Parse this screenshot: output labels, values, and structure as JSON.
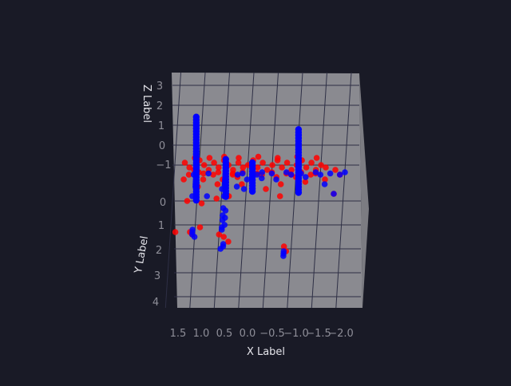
{
  "colors": {
    "background": "#191a26",
    "pane": "#8a8a90",
    "grid": "#2e2f45",
    "tick_text": "#8e8e98",
    "label_text": "#e4e4ea"
  },
  "chart_data": {
    "type": "scatter",
    "title": "",
    "projection": "3d",
    "view": "top-down",
    "xlabel": "X Label",
    "ylabel": "Y Label",
    "zlabel": "Z Label",
    "xlim": [
      1.7,
      -2.3
    ],
    "ylim": [
      -0.7,
      4.2
    ],
    "x_ticks": [
      "1.5",
      "1.0",
      "0.5",
      "0.0",
      "−0.5",
      "−1.0",
      "−1.5",
      "−2.0"
    ],
    "y_ticks": [
      "0",
      "1",
      "2",
      "3",
      "4"
    ],
    "z_ticks": [
      "3",
      "2",
      "1",
      "0",
      "−1"
    ],
    "grid": true,
    "legend": "none",
    "series": [
      {
        "color": "#ff0000",
        "points": [
          [
            1.3,
            -0.4
          ],
          [
            1.2,
            -0.2
          ],
          [
            1.0,
            -0.5
          ],
          [
            0.9,
            -0.3
          ],
          [
            0.8,
            -0.1
          ],
          [
            0.7,
            -0.4
          ],
          [
            0.6,
            -0.2
          ],
          [
            0.5,
            -0.5
          ],
          [
            0.4,
            -0.3
          ],
          [
            0.3,
            -0.1
          ],
          [
            0.2,
            -0.4
          ],
          [
            0.1,
            -0.2
          ],
          [
            0.0,
            -0.3
          ],
          [
            -0.1,
            -0.5
          ],
          [
            -0.2,
            -0.2
          ],
          [
            -0.3,
            -0.4
          ],
          [
            -0.4,
            -0.1
          ],
          [
            -0.5,
            -0.3
          ],
          [
            -0.6,
            -0.5
          ],
          [
            -0.7,
            -0.2
          ],
          [
            -0.8,
            -0.4
          ],
          [
            -0.9,
            -0.1
          ],
          [
            -1.0,
            -0.3
          ],
          [
            -1.1,
            -0.5
          ],
          [
            -1.2,
            -0.2
          ],
          [
            -1.3,
            -0.4
          ],
          [
            -1.4,
            -0.1
          ],
          [
            -1.5,
            -0.3
          ],
          [
            -1.6,
            -0.2
          ],
          [
            -1.8,
            -0.1
          ],
          [
            1.1,
            -0.1
          ],
          [
            1.0,
            0.0
          ],
          [
            0.9,
            0.05
          ],
          [
            0.6,
            0.0
          ],
          [
            0.3,
            0.05
          ],
          [
            0.1,
            0.0
          ],
          [
            -0.2,
            0.05
          ],
          [
            -0.5,
            0.0
          ],
          [
            -0.8,
            0.05
          ],
          [
            -1.1,
            0.0
          ],
          [
            -1.4,
            0.05
          ],
          [
            1.2,
            0.1
          ],
          [
            0.7,
            0.1
          ],
          [
            0.3,
            0.1
          ],
          [
            -0.3,
            0.1
          ],
          [
            -0.9,
            0.1
          ],
          [
            -1.3,
            0.1
          ],
          [
            -1.9,
            0.1
          ],
          [
            1.3,
            0.3
          ],
          [
            0.9,
            0.3
          ],
          [
            0.5,
            0.3
          ],
          [
            0.2,
            0.2
          ],
          [
            -0.1,
            0.3
          ],
          [
            -0.6,
            0.2
          ],
          [
            -1.0,
            0.2
          ],
          [
            -1.6,
            0.3
          ],
          [
            1.0,
            0.6
          ],
          [
            0.6,
            0.5
          ],
          [
            0.1,
            0.5
          ],
          [
            -0.4,
            0.7
          ],
          [
            -0.7,
            0.5
          ],
          [
            -1.2,
            0.4
          ],
          [
            -1.8,
            0.9
          ],
          [
            1.2,
            1.2
          ],
          [
            0.9,
            1.3
          ],
          [
            0.6,
            1.1
          ],
          [
            0.35,
            1.0
          ],
          [
            -0.7,
            1.0
          ],
          [
            0.9,
            2.3
          ],
          [
            0.5,
            2.6
          ],
          [
            0.4,
            2.7
          ],
          [
            0.3,
            2.9
          ],
          [
            1.4,
            2.5
          ],
          [
            1.1,
            2.5
          ],
          [
            1.05,
            2.6
          ],
          [
            -0.9,
            3.3
          ],
          [
            -0.85,
            3.1
          ],
          [
            1.1,
            -0.6
          ],
          [
            0.8,
            -0.6
          ],
          [
            0.5,
            -0.65
          ],
          [
            0.2,
            -0.6
          ],
          [
            -0.2,
            -0.65
          ],
          [
            -0.6,
            -0.6
          ],
          [
            -1.0,
            -0.65
          ],
          [
            -1.4,
            -0.6
          ]
        ]
      },
      {
        "color": "#0000ff",
        "points": [
          [
            1.05,
            -0.2
          ],
          [
            1.05,
            -0.1
          ],
          [
            1.05,
            0.0
          ],
          [
            1.05,
            0.1
          ],
          [
            1.05,
            0.2
          ],
          [
            1.05,
            0.3
          ],
          [
            1.05,
            0.4
          ],
          [
            1.05,
            0.5
          ],
          [
            1.05,
            0.6
          ],
          [
            0.45,
            -0.3
          ],
          [
            0.45,
            -0.2
          ],
          [
            0.45,
            -0.1
          ],
          [
            0.45,
            0.0
          ],
          [
            0.45,
            0.1
          ],
          [
            0.45,
            0.2
          ],
          [
            0.45,
            0.3
          ],
          [
            0.45,
            0.4
          ],
          [
            0.45,
            0.5
          ],
          [
            0.45,
            1.0
          ],
          [
            0.45,
            1.5
          ],
          [
            0.4,
            1.6
          ],
          [
            0.45,
            1.8
          ],
          [
            0.4,
            1.9
          ],
          [
            0.45,
            2.0
          ],
          [
            0.4,
            2.2
          ],
          [
            0.45,
            2.3
          ],
          [
            0.45,
            2.4
          ],
          [
            1.05,
            2.4
          ],
          [
            1.05,
            2.5
          ],
          [
            1.05,
            2.6
          ],
          [
            1.0,
            2.7
          ],
          [
            0.4,
            3.0
          ],
          [
            0.4,
            3.1
          ],
          [
            0.45,
            3.2
          ],
          [
            0.1,
            0.05
          ],
          [
            -0.2,
            0.1
          ],
          [
            -0.5,
            0.05
          ],
          [
            -0.8,
            0.0
          ],
          [
            -1.1,
            0.05
          ],
          [
            -1.4,
            0.0
          ],
          [
            -1.7,
            0.05
          ],
          [
            -2.0,
            0.0
          ],
          [
            1.1,
            0.1
          ],
          [
            0.8,
            0.05
          ],
          [
            0.2,
            0.1
          ],
          [
            -0.3,
            0.0
          ],
          [
            -0.9,
            0.1
          ],
          [
            -1.5,
            0.1
          ],
          [
            -1.9,
            0.1
          ],
          [
            0.0,
            0.3
          ],
          [
            -0.3,
            0.25
          ],
          [
            -0.6,
            0.3
          ],
          [
            -1.2,
            0.2
          ],
          [
            0.2,
            0.6
          ],
          [
            0.05,
            0.7
          ],
          [
            -1.6,
            0.5
          ],
          [
            -1.8,
            0.9
          ],
          [
            1.1,
            1.0
          ],
          [
            0.8,
            1.0
          ],
          [
            0.5,
            0.7
          ],
          [
            -0.85,
            3.3
          ],
          [
            -0.85,
            3.4
          ],
          [
            -0.85,
            3.5
          ]
        ]
      }
    ],
    "vertical_stacks": [
      {
        "color": "#0000ff",
        "x": 1.05,
        "y": 0.05,
        "z_top": 3.0,
        "z_bottom": -1.4
      },
      {
        "color": "#0000ff",
        "x": 0.45,
        "y": -0.1,
        "z_top": 0.6,
        "z_bottom": -1.4
      },
      {
        "color": "#0000ff",
        "x": -0.1,
        "y": 0.0,
        "z_top": 0.5,
        "z_bottom": -1.0
      },
      {
        "color": "#0000ff",
        "x": -1.05,
        "y": 0.05,
        "z_top": 2.4,
        "z_bottom": -1.0
      }
    ]
  }
}
